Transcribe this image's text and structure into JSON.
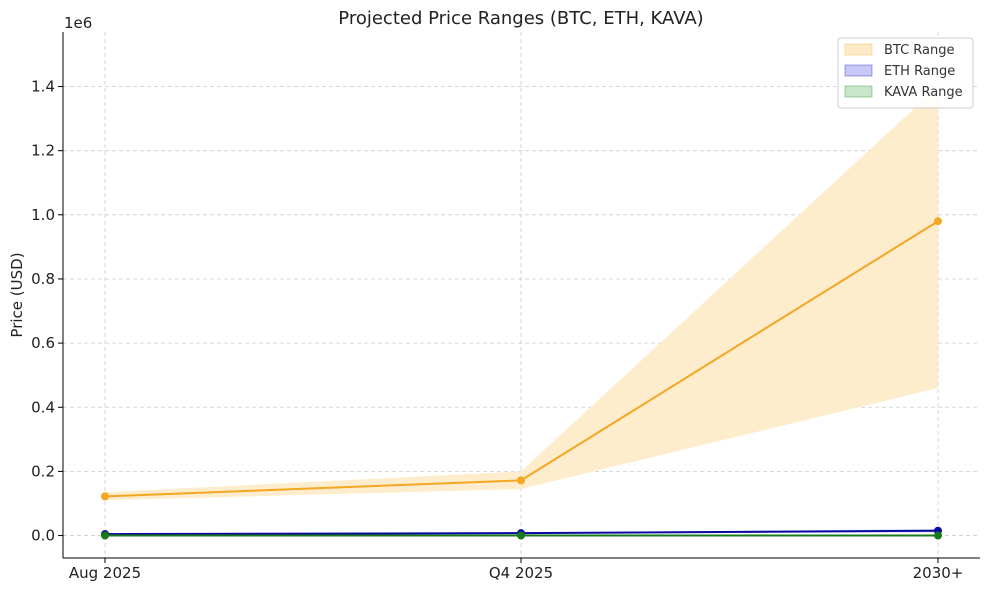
{
  "chart_data": {
    "type": "line",
    "title": "Projected Price Ranges (BTC, ETH, KAVA)",
    "xlabel": "",
    "ylabel": "Price (USD)",
    "y_multiplier_label": "1e6",
    "categories": [
      "Aug 2025",
      "Q4 2025",
      "2030+"
    ],
    "ylim": [
      -70000,
      1570000
    ],
    "y_ticks": [
      0,
      200000,
      400000,
      600000,
      800000,
      1000000,
      1200000,
      1400000
    ],
    "y_tick_labels": [
      "0.0",
      "0.2",
      "0.4",
      "0.6",
      "0.8",
      "1.0",
      "1.2",
      "1.4"
    ],
    "grid": true,
    "legend_position": "top-right",
    "series": [
      {
        "name": "BTC Range",
        "color": "#f5a623",
        "fill_color": "#fdebc8",
        "values": [
          122000,
          172000,
          980000
        ],
        "low": [
          110000,
          145000,
          460000
        ],
        "high": [
          135000,
          200000,
          1400000
        ]
      },
      {
        "name": "ETH Range",
        "color": "#0a0aa0",
        "fill_color": "#c8c8f8",
        "values": [
          4500,
          7500,
          15000
        ],
        "low": [
          3500,
          6000,
          10000
        ],
        "high": [
          5500,
          9000,
          20000
        ]
      },
      {
        "name": "KAVA Range",
        "color": "#1a7a1a",
        "fill_color": "#c8e6c8",
        "values": [
          0.5,
          1,
          3
        ],
        "low": [
          0.4,
          0.8,
          1
        ],
        "high": [
          0.7,
          1.5,
          5
        ]
      }
    ]
  }
}
